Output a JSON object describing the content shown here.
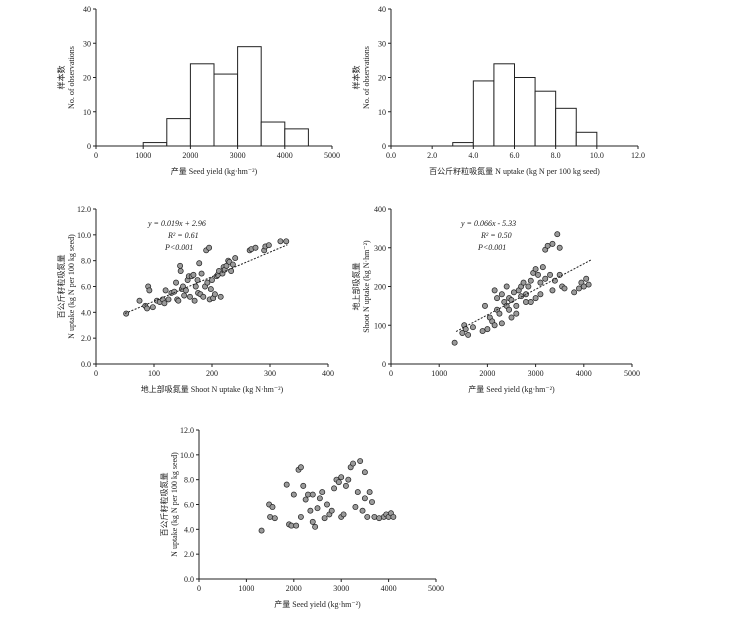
{
  "chart_data": [
    {
      "id": "a",
      "type": "bar",
      "bin_edges": [
        0,
        500,
        1000,
        1500,
        2000,
        2500,
        3000,
        3500,
        4000,
        4500,
        5000
      ],
      "values": [
        0,
        0,
        1,
        8,
        24,
        21,
        29,
        7,
        5,
        0
      ],
      "xlim": [
        0,
        5000
      ],
      "xticks": [
        "0",
        "1000",
        "2000",
        "3000",
        "4000",
        "5000"
      ],
      "ylim": [
        0,
        40
      ],
      "yticks": [
        "0",
        "10",
        "20",
        "30",
        "40"
      ],
      "xlabel": "产量 Seed yield (kg·hm⁻²)",
      "ylabel_cn": "样本数",
      "ylabel_en": "No. of observations"
    },
    {
      "id": "b",
      "type": "bar",
      "bin_edges": [
        0,
        1,
        2,
        3,
        4,
        5,
        6,
        7,
        8,
        9,
        10,
        11,
        12
      ],
      "values": [
        0,
        0,
        0,
        1,
        19,
        24,
        20,
        16,
        11,
        4,
        0,
        0
      ],
      "xlim": [
        0,
        12
      ],
      "xticks": [
        "0.0",
        "2.0",
        "4.0",
        "6.0",
        "8.0",
        "10.0",
        "12.0"
      ],
      "ylim": [
        0,
        40
      ],
      "yticks": [
        "0",
        "10",
        "20",
        "30",
        "40"
      ],
      "xlabel": "百公斤籽粒吸氮量  N uptake  (kg N per 100 kg seed)",
      "ylabel_cn": "样本数",
      "ylabel_en": "No. of observations"
    },
    {
      "id": "c",
      "type": "scatter",
      "xlim": [
        0,
        400
      ],
      "xticks": [
        "0",
        "100",
        "200",
        "300",
        "400"
      ],
      "ylim": [
        0,
        12
      ],
      "yticks": [
        "0.0",
        "2.0",
        "4.0",
        "6.0",
        "8.0",
        "10.0",
        "12.0"
      ],
      "xlabel": "地上部吸氮量 Shoot N uptake (kg N·hm⁻²)",
      "ylabel_cn": "百公斤籽粒吸氮量",
      "ylabel_en": "N uptake (kg N per 100 kg seed)",
      "fit": {
        "slope": 0.019,
        "intercept": 2.96,
        "x_range": [
          50,
          330
        ]
      },
      "annotation": [
        "y = 0.019x + 2.96",
        "R² = 0.61",
        "P<0.001"
      ],
      "points": [
        [
          52,
          3.9
        ],
        [
          75,
          4.9
        ],
        [
          85,
          4.5
        ],
        [
          88,
          4.3
        ],
        [
          90,
          6.0
        ],
        [
          92,
          5.7
        ],
        [
          98,
          4.4
        ],
        [
          105,
          4.9
        ],
        [
          110,
          4.8
        ],
        [
          115,
          5.0
        ],
        [
          118,
          4.7
        ],
        [
          120,
          5.7
        ],
        [
          125,
          5.0
        ],
        [
          130,
          5.5
        ],
        [
          135,
          5.6
        ],
        [
          138,
          6.3
        ],
        [
          140,
          5.0
        ],
        [
          142,
          4.9
        ],
        [
          145,
          7.6
        ],
        [
          146,
          7.2
        ],
        [
          148,
          5.8
        ],
        [
          150,
          6.0
        ],
        [
          152,
          5.3
        ],
        [
          155,
          5.7
        ],
        [
          158,
          6.5
        ],
        [
          160,
          6.8
        ],
        [
          162,
          5.2
        ],
        [
          165,
          6.8
        ],
        [
          168,
          6.9
        ],
        [
          170,
          4.9
        ],
        [
          172,
          6.0
        ],
        [
          175,
          6.5
        ],
        [
          176,
          5.5
        ],
        [
          178,
          7.8
        ],
        [
          180,
          5.4
        ],
        [
          182,
          7.0
        ],
        [
          185,
          5.2
        ],
        [
          188,
          6.0
        ],
        [
          190,
          8.8
        ],
        [
          192,
          6.3
        ],
        [
          195,
          9.0
        ],
        [
          196,
          5.0
        ],
        [
          198,
          5.8
        ],
        [
          200,
          6.5
        ],
        [
          202,
          5.1
        ],
        [
          205,
          5.4
        ],
        [
          208,
          6.8
        ],
        [
          210,
          6.9
        ],
        [
          212,
          7.2
        ],
        [
          215,
          5.2
        ],
        [
          218,
          7.0
        ],
        [
          220,
          7.5
        ],
        [
          222,
          7.3
        ],
        [
          225,
          7.6
        ],
        [
          228,
          8.0
        ],
        [
          230,
          7.9
        ],
        [
          233,
          7.2
        ],
        [
          236,
          7.7
        ],
        [
          240,
          8.2
        ],
        [
          265,
          8.8
        ],
        [
          268,
          8.9
        ],
        [
          275,
          9.0
        ],
        [
          290,
          8.8
        ],
        [
          292,
          9.1
        ],
        [
          298,
          9.2
        ],
        [
          318,
          9.5
        ],
        [
          328,
          9.5
        ]
      ]
    },
    {
      "id": "d",
      "type": "scatter",
      "xlim": [
        0,
        5000
      ],
      "xticks": [
        "0",
        "1000",
        "2000",
        "3000",
        "4000",
        "5000"
      ],
      "ylim": [
        0,
        400
      ],
      "yticks": [
        "0",
        "100",
        "200",
        "300",
        "400"
      ],
      "xlabel": "产量 Seed yield (kg·hm⁻²)",
      "ylabel_cn": "地上部吸氮量",
      "ylabel_en": "Shoot N uptake (kg N·hm⁻²)",
      "fit": {
        "slope": 0.066,
        "intercept": -5.33,
        "x_range": [
          1350,
          4150
        ]
      },
      "annotation": [
        "y = 0.066x - 5.33",
        "R² = 0.50",
        "P<0.001"
      ],
      "points": [
        [
          1320,
          55
        ],
        [
          1480,
          80
        ],
        [
          1520,
          100
        ],
        [
          1550,
          90
        ],
        [
          1600,
          75
        ],
        [
          1700,
          95
        ],
        [
          1900,
          85
        ],
        [
          1950,
          150
        ],
        [
          2000,
          90
        ],
        [
          2050,
          120
        ],
        [
          2100,
          110
        ],
        [
          2150,
          100
        ],
        [
          2150,
          190
        ],
        [
          2200,
          140
        ],
        [
          2200,
          170
        ],
        [
          2250,
          130
        ],
        [
          2300,
          105
        ],
        [
          2300,
          180
        ],
        [
          2350,
          160
        ],
        [
          2400,
          150
        ],
        [
          2400,
          200
        ],
        [
          2450,
          140
        ],
        [
          2450,
          170
        ],
        [
          2500,
          120
        ],
        [
          2500,
          165
        ],
        [
          2550,
          185
        ],
        [
          2600,
          130
        ],
        [
          2600,
          150
        ],
        [
          2650,
          190
        ],
        [
          2700,
          175
        ],
        [
          2700,
          200
        ],
        [
          2750,
          210
        ],
        [
          2800,
          160
        ],
        [
          2800,
          180
        ],
        [
          2850,
          200
        ],
        [
          2900,
          215
        ],
        [
          2900,
          160
        ],
        [
          2950,
          235
        ],
        [
          3000,
          245
        ],
        [
          3000,
          170
        ],
        [
          3050,
          230
        ],
        [
          3100,
          210
        ],
        [
          3100,
          180
        ],
        [
          3150,
          250
        ],
        [
          3200,
          220
        ],
        [
          3200,
          295
        ],
        [
          3250,
          305
        ],
        [
          3300,
          230
        ],
        [
          3350,
          190
        ],
        [
          3350,
          310
        ],
        [
          3400,
          215
        ],
        [
          3450,
          335
        ],
        [
          3500,
          230
        ],
        [
          3500,
          300
        ],
        [
          3550,
          200
        ],
        [
          3600,
          195
        ],
        [
          3800,
          185
        ],
        [
          3900,
          195
        ],
        [
          3950,
          210
        ],
        [
          4000,
          200
        ],
        [
          4050,
          220
        ],
        [
          4100,
          205
        ]
      ]
    },
    {
      "id": "e",
      "type": "scatter",
      "xlim": [
        0,
        5000
      ],
      "xticks": [
        "0",
        "1000",
        "2000",
        "3000",
        "4000",
        "5000"
      ],
      "ylim": [
        0,
        12
      ],
      "yticks": [
        "0.0",
        "2.0",
        "4.0",
        "6.0",
        "8.0",
        "10.0",
        "12.0"
      ],
      "xlabel": "产量 Seed yield (kg·hm⁻²)",
      "ylabel_cn": "百公斤籽粒吸氮量",
      "ylabel_en": "N uptake (kg N per 100 kg seed)",
      "points": [
        [
          1320,
          3.9
        ],
        [
          1480,
          6.0
        ],
        [
          1500,
          5.0
        ],
        [
          1550,
          5.8
        ],
        [
          1600,
          4.9
        ],
        [
          1850,
          7.6
        ],
        [
          1900,
          4.4
        ],
        [
          1950,
          4.3
        ],
        [
          2000,
          6.8
        ],
        [
          2050,
          4.3
        ],
        [
          2100,
          8.8
        ],
        [
          2150,
          9.0
        ],
        [
          2150,
          5.0
        ],
        [
          2200,
          7.5
        ],
        [
          2250,
          6.4
        ],
        [
          2300,
          6.8
        ],
        [
          2350,
          5.5
        ],
        [
          2400,
          4.6
        ],
        [
          2400,
          6.8
        ],
        [
          2450,
          4.2
        ],
        [
          2500,
          5.7
        ],
        [
          2550,
          6.5
        ],
        [
          2600,
          7.0
        ],
        [
          2650,
          4.9
        ],
        [
          2700,
          6.0
        ],
        [
          2750,
          5.2
        ],
        [
          2800,
          5.5
        ],
        [
          2850,
          7.3
        ],
        [
          2900,
          8.0
        ],
        [
          2950,
          7.8
        ],
        [
          3000,
          5.0
        ],
        [
          3000,
          8.2
        ],
        [
          3050,
          5.2
        ],
        [
          3100,
          7.5
        ],
        [
          3150,
          8.0
        ],
        [
          3200,
          9.0
        ],
        [
          3250,
          9.3
        ],
        [
          3300,
          5.8
        ],
        [
          3350,
          7.0
        ],
        [
          3400,
          9.5
        ],
        [
          3450,
          5.5
        ],
        [
          3500,
          8.6
        ],
        [
          3500,
          6.5
        ],
        [
          3550,
          5.0
        ],
        [
          3600,
          7.0
        ],
        [
          3650,
          6.2
        ],
        [
          3700,
          5.0
        ],
        [
          3800,
          4.9
        ],
        [
          3900,
          5.0
        ],
        [
          3950,
          5.2
        ],
        [
          4000,
          5.0
        ],
        [
          4050,
          5.3
        ],
        [
          4100,
          5.0
        ]
      ]
    }
  ]
}
